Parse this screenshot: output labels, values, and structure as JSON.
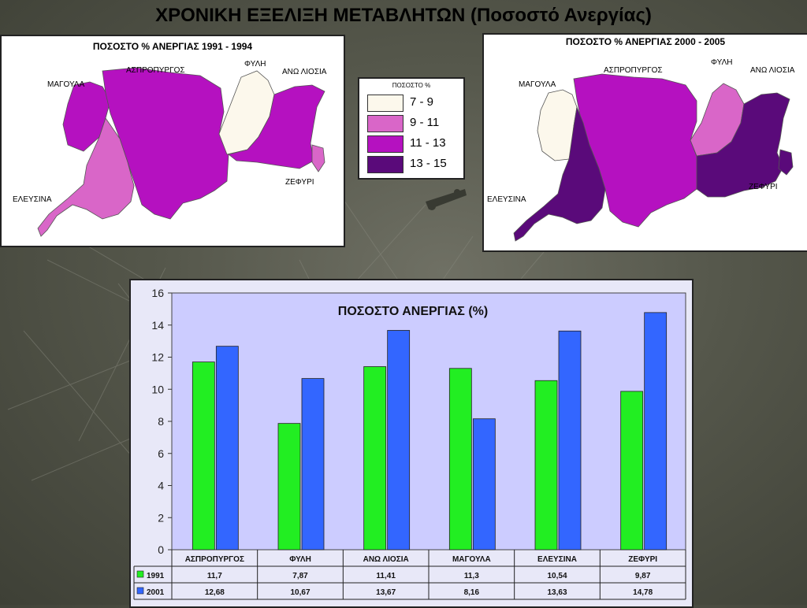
{
  "slide": {
    "title": "ΧΡΟΝΙΚΗ ΕΞΕΛΙΞΗ ΜΕΤΑΒΛΗΤΩΝ (Ποσοστό Ανεργίας)"
  },
  "map_left": {
    "title": "ΠΟΣΟΣΤΟ % ΑΝΕΡΓΙΑΣ 1991 - 1994",
    "labels": {
      "magoula": "ΜΑΓΟΥΛΑ",
      "aspropyrgos": "ΑΣΠΡΟΠΥΡΓΟΣ",
      "fyli": "ΦΥΛΗ",
      "ano_liosia": "ΑΝΩ ΛΙΟΣΙΑ",
      "elefsina": "ΕΛΕΥΣΙΝΑ",
      "zefyri": "ΖΕΦΥΡΙ"
    }
  },
  "map_right": {
    "title": "ΠΟΣΟΣΤΟ % ΑΝΕΡΓΙΑΣ 2000 - 2005",
    "labels": {
      "magoula": "ΜΑΓΟΥΛΑ",
      "aspropyrgos": "ΑΣΠΡΟΠΥΡΓΟΣ",
      "fyli": "ΦΥΛΗ",
      "ano_liosia": "ΑΝΩ ΛΙΟΣΙΑ",
      "elefsina": "ΕΛΕΥΣΙΝΑ",
      "zefyri": "ΖΕΦΥΡΙ"
    }
  },
  "map_legend": {
    "title": "ΠΟΣΟΣΤΟ %",
    "items": [
      {
        "label": "7 - 9",
        "color": "#fcf8ec"
      },
      {
        "label": "9 - 11",
        "color": "#d966c8"
      },
      {
        "label": "11 - 13",
        "color": "#b511c0"
      },
      {
        "label": "13 - 15",
        "color": "#5a0a7a"
      }
    ]
  },
  "chart_data": {
    "type": "bar",
    "title": "ΠΟΣΟΣΤΟ ΑΝΕΡΓΙΑΣ (%)",
    "categories": [
      "ΑΣΠΡΟΠΥΡΓΟΣ",
      "ΦΥΛΗ",
      "ΑΝΩ ΛΙΟΣΙΑ",
      "ΜΑΓΟΥΛΑ",
      "ΕΛΕΥΣΙΝΑ",
      "ΖΕΦΥΡΙ"
    ],
    "series": [
      {
        "name": "1991",
        "color": "#22ee22",
        "values": [
          11.7,
          7.87,
          11.41,
          11.3,
          10.54,
          9.87
        ],
        "labels": [
          "11,7",
          "7,87",
          "11,41",
          "11,3",
          "10,54",
          "9,87"
        ]
      },
      {
        "name": "2001",
        "color": "#3366ff",
        "values": [
          12.68,
          10.67,
          13.67,
          8.16,
          13.63,
          14.78
        ],
        "labels": [
          "12,68",
          "10,67",
          "13,67",
          "8,16",
          "13,63",
          "14,78"
        ]
      }
    ],
    "ylim": [
      0,
      16
    ],
    "yticks": [
      0,
      2,
      4,
      6,
      8,
      10,
      12,
      14,
      16
    ],
    "plot_bg": "#ccccff",
    "grid": false,
    "legend": "data-table"
  }
}
